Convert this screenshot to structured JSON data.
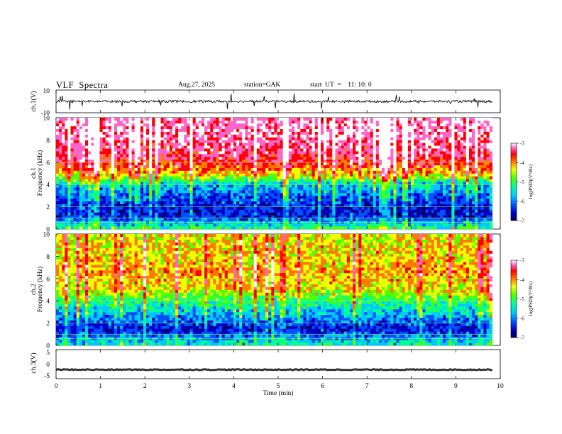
{
  "header": {
    "title": "VLF  Spectra",
    "date": "Aug.27, 2025",
    "station": "station=GAK",
    "start_ut": "start  UT  =    11: 10: 0"
  },
  "chart_data": [
    {
      "type": "line",
      "panel": "ch1-waveform",
      "ylabel": "ch.1(V)",
      "ylim": [
        -10,
        10
      ],
      "yticks": [
        "10",
        "-10"
      ],
      "xlim": [
        0,
        10
      ],
      "baseline": 0,
      "amplitude_typical": 2
    },
    {
      "type": "heatmap",
      "panel": "ch1-spectrogram",
      "ylabel_channel": "ch.1",
      "ylabel": "Frequency  (kHz)",
      "ylim": [
        0,
        10
      ],
      "yticks": [
        "0",
        "2",
        "4",
        "6",
        "8",
        "10"
      ],
      "xlim": [
        0,
        10
      ],
      "colorbar": {
        "label": "log(PSD)(V²/Hz)",
        "range": [
          -7,
          -3
        ],
        "ticks": [
          "-3",
          "-4",
          "-5",
          "-6",
          "-7"
        ]
      },
      "profile_khz": [
        0,
        1.2,
        2.5,
        4.0,
        4.8,
        6.0,
        8.0,
        10.0
      ],
      "profile_level": [
        -5.2,
        -6.6,
        -6.4,
        -5.8,
        -4.6,
        -3.8,
        -3.4,
        -3.3
      ]
    },
    {
      "type": "heatmap",
      "panel": "ch2-spectrogram",
      "ylabel_channel": "ch.2",
      "ylabel": "Frequency  (kHz)",
      "ylim": [
        0,
        10
      ],
      "yticks": [
        "0",
        "2",
        "4",
        "6",
        "8",
        "10"
      ],
      "xlim": [
        0,
        10
      ],
      "colorbar": {
        "label": "log(PSD)(V²/Hz)",
        "range": [
          -7,
          -3
        ],
        "ticks": [
          "-3",
          "-4",
          "-5",
          "-6",
          "-7"
        ]
      },
      "profile_khz": [
        0,
        1.5,
        2.5,
        4.0,
        5.0,
        6.5,
        8.0,
        10.0
      ],
      "profile_level": [
        -5.5,
        -6.6,
        -6.0,
        -5.3,
        -4.6,
        -4.3,
        -4.5,
        -4.6
      ]
    },
    {
      "type": "line",
      "panel": "ch3-waveform",
      "ylabel": "ch.3(V)",
      "ylim": [
        -5,
        5
      ],
      "yticks": [
        "5",
        "0",
        "-5"
      ],
      "xlim": [
        0,
        10
      ],
      "baseline": -1.9,
      "amplitude_typical": 0.3
    }
  ],
  "xaxis": {
    "label": "Time  (min)",
    "ticks": [
      "0",
      "1",
      "2",
      "3",
      "4",
      "5",
      "6",
      "7",
      "8",
      "9",
      "10"
    ],
    "data_end_min": 9.82
  },
  "colors": {
    "scale": [
      "#000060",
      "#0000c8",
      "#0050ff",
      "#00c8ff",
      "#00ff96",
      "#50ff00",
      "#f0ff00",
      "#ff7800",
      "#ff0000",
      "#ff64c8",
      "#ffffff"
    ]
  }
}
